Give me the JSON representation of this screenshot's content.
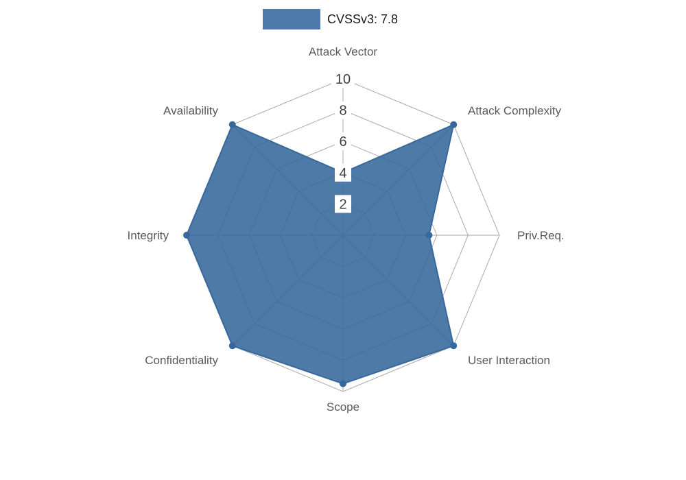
{
  "legend": {
    "label": "CVSSv3: 7.8",
    "swatch_color": "#4d7aa8"
  },
  "chart_data": {
    "type": "radar",
    "title": "",
    "series": [
      {
        "name": "CVSSv3: 7.8",
        "values": [
          4,
          10,
          5.5,
          10,
          9.5,
          10,
          10,
          10
        ]
      }
    ],
    "categories": [
      "Attack Vector",
      "Attack Complexity",
      "Priv.Req.",
      "User Interaction",
      "Scope",
      "Confidentiality",
      "Integrity",
      "Availability"
    ],
    "radial_ticks": [
      2,
      4,
      6,
      8,
      10
    ],
    "range": [
      0,
      10
    ],
    "grid": true,
    "legend_position": "top-center",
    "fill_color": "#36689c",
    "fill_opacity": 0.88,
    "line_color": "#36689c",
    "grid_color": "#a9a9a9",
    "label_color": "#5a5a5a",
    "tick_color": "#404040",
    "tick_bg_color": "#ffffff"
  }
}
